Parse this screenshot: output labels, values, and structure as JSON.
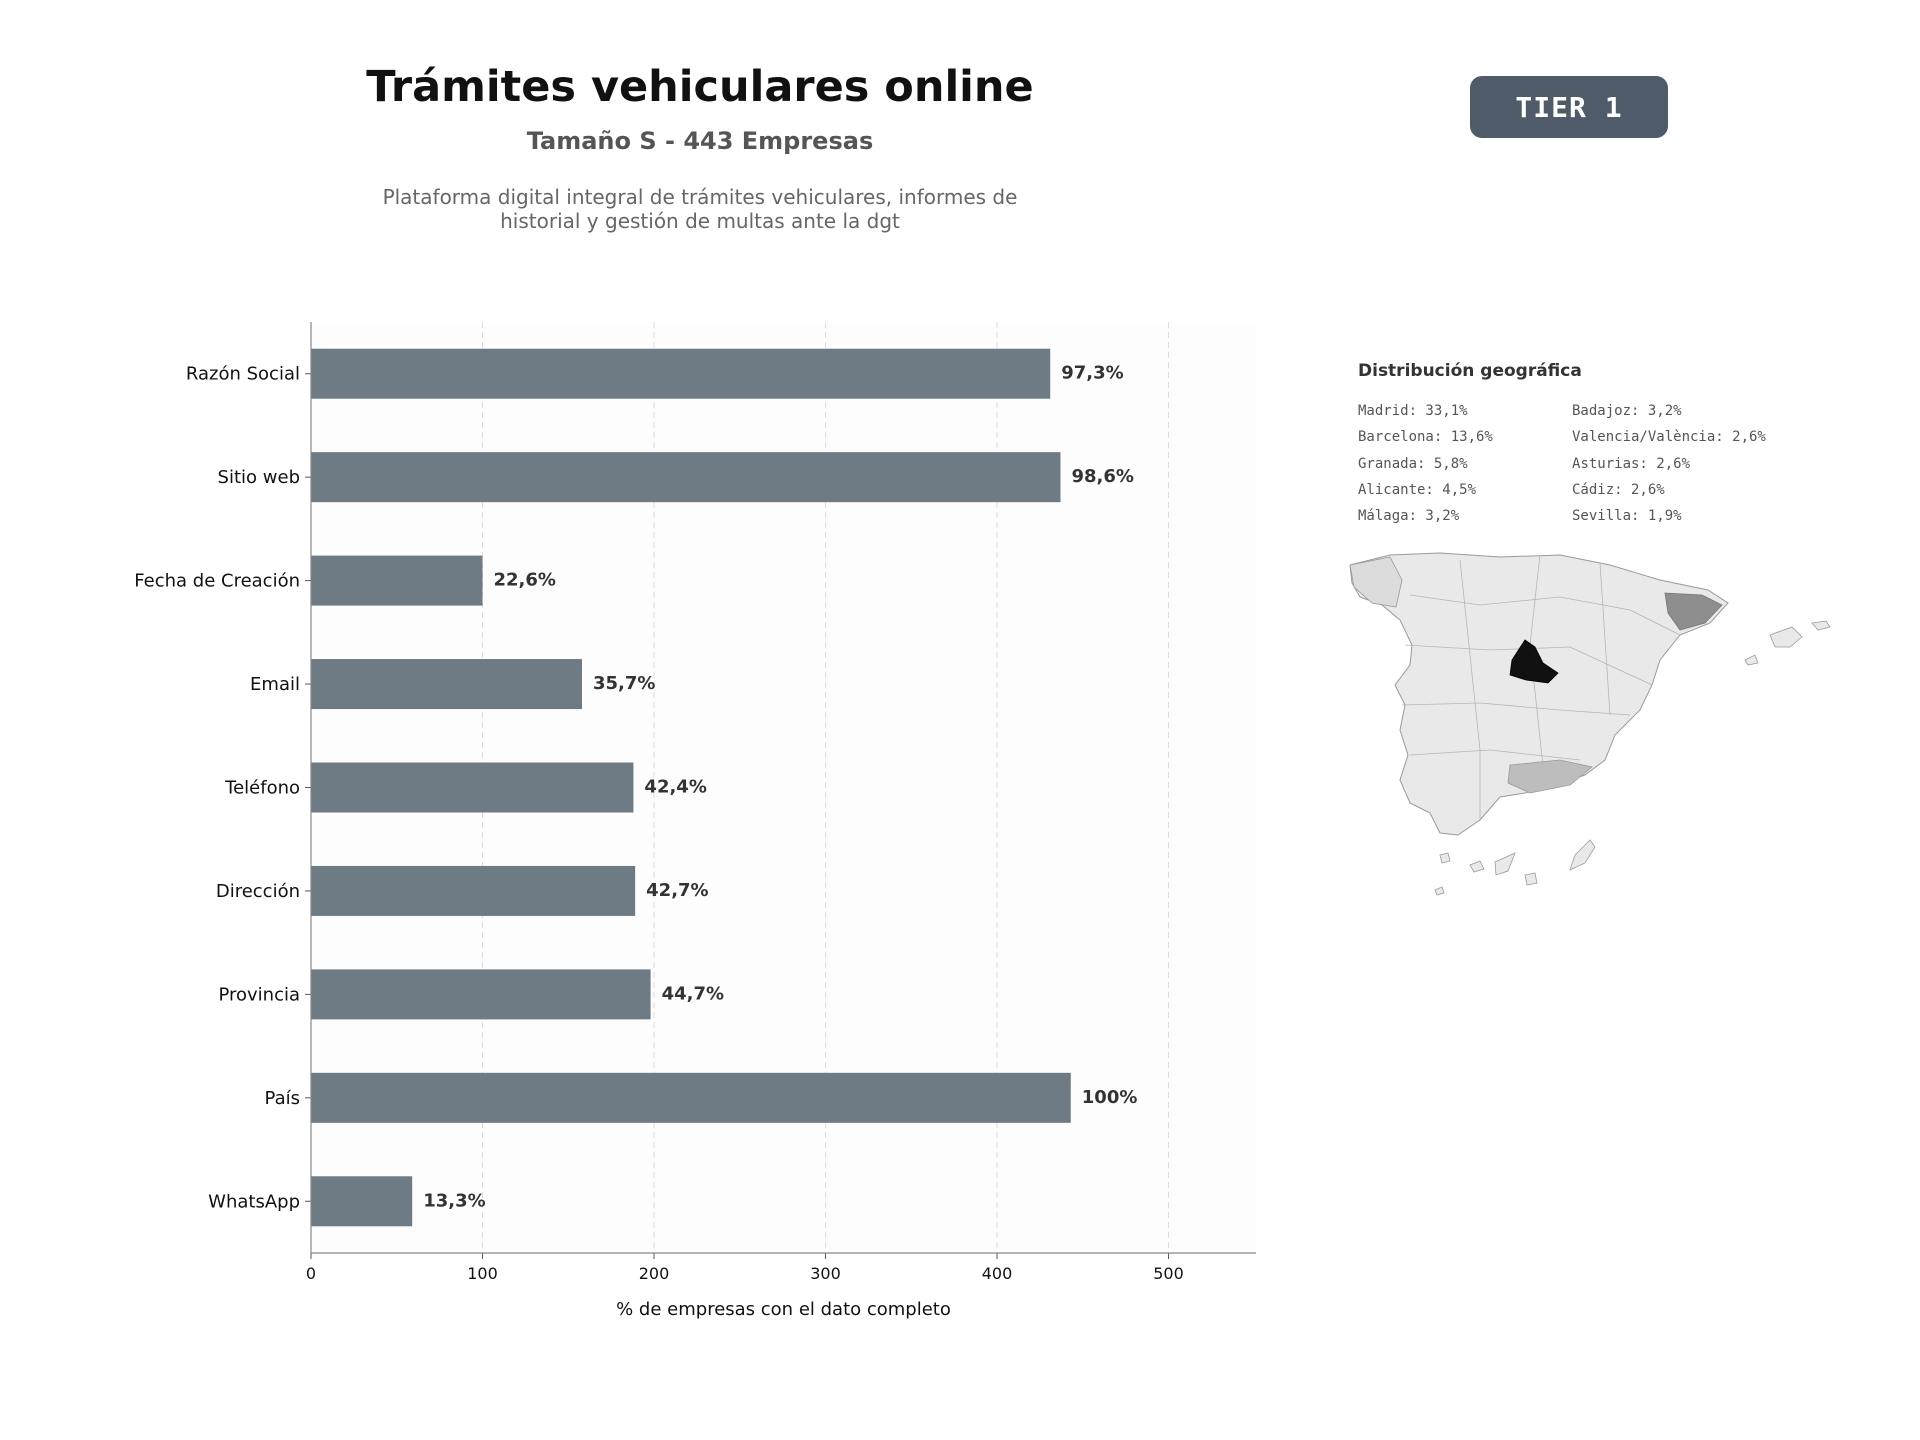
{
  "header": {
    "title": "Trámites vehiculares online",
    "subtitle": "Tamaño S - 443 Empresas",
    "description": "Plataforma digital integral de trámites vehiculares, informes de historial y gestión de multas ante la dgt",
    "badge": "TIER 1"
  },
  "chart_data": {
    "type": "bar",
    "orientation": "horizontal",
    "categories": [
      "Razón Social",
      "Sitio web",
      "Fecha de Creación",
      "Email",
      "Teléfono",
      "Dirección",
      "Provincia",
      "País",
      "WhatsApp"
    ],
    "values": [
      431,
      437,
      100,
      158,
      188,
      189,
      198,
      443,
      59
    ],
    "data_labels": [
      "97,3%",
      "98,6%",
      "22,6%",
      "35,7%",
      "42,4%",
      "42,7%",
      "44,7%",
      "100%",
      "13,3%"
    ],
    "xlabel": "% de empresas con el dato completo",
    "xlim": [
      0,
      551
    ],
    "xticks": [
      0,
      100,
      200,
      300,
      400,
      500
    ],
    "grid": "vertical dashed",
    "bar_color": "#6e7a84"
  },
  "geo": {
    "title": "Distribución geográfica",
    "col_a": [
      "Madrid: 33,1%",
      "Barcelona: 13,6%",
      "Granada: 5,8%",
      "Alicante: 4,5%",
      "Málaga: 3,2%"
    ],
    "col_b": [
      "Badajoz: 3,2%",
      "Valencia/València: 2,6%",
      "Asturias: 2,6%",
      "Cádiz: 2,6%",
      "Sevilla: 1,9%"
    ]
  }
}
